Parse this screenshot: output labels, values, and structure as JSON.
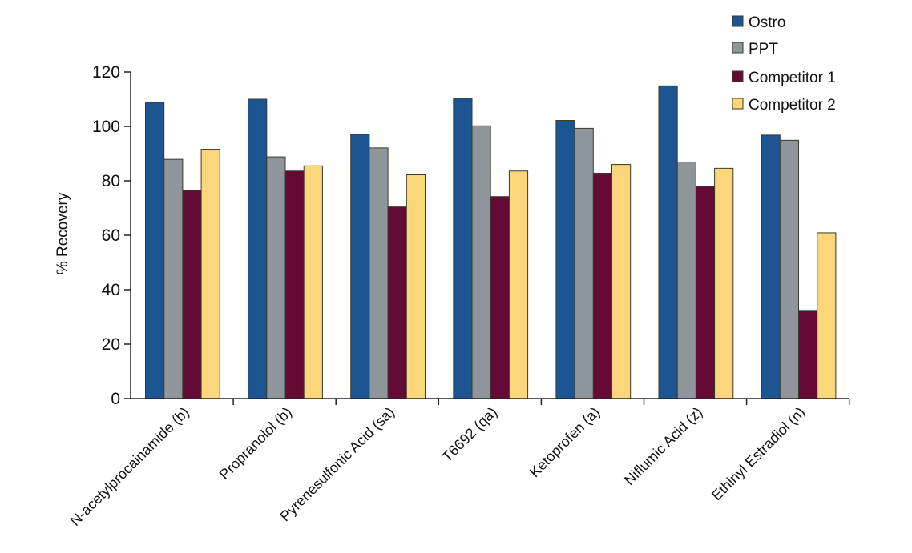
{
  "chart_data": {
    "type": "bar",
    "title": "",
    "xlabel": "",
    "ylabel": "% Recovery",
    "ylim": [
      0,
      120
    ],
    "yticks": [
      "0",
      "20",
      "40",
      "60",
      "80",
      "100",
      "120"
    ],
    "grid": false,
    "legend_position": "top-right",
    "categories": [
      "N-acetylprocainamide (b)",
      "Propranolol (b)",
      "Pyrenesulfonic Acid (sa)",
      "T6692 (qa)",
      "Ketoprofen (a)",
      "Niflumic Acid (z)",
      "Ethinyl Estradiol (n)"
    ],
    "series": [
      {
        "name": "Ostro",
        "color": "#1d5592",
        "values": [
          108.8,
          110.0,
          97.1,
          110.3,
          102.2,
          114.9,
          96.8
        ]
      },
      {
        "name": "PPT",
        "color": "#8e969c",
        "values": [
          87.9,
          88.8,
          92.1,
          100.2,
          99.3,
          86.9,
          94.9
        ]
      },
      {
        "name": "Competitor 1",
        "color": "#650a34",
        "values": [
          76.5,
          83.6,
          70.4,
          74.2,
          82.8,
          77.9,
          32.4
        ]
      },
      {
        "name": "Competitor 2",
        "color": "#fbd67b",
        "values": [
          91.6,
          85.5,
          82.2,
          83.6,
          86.0,
          84.6,
          60.9
        ]
      }
    ]
  }
}
